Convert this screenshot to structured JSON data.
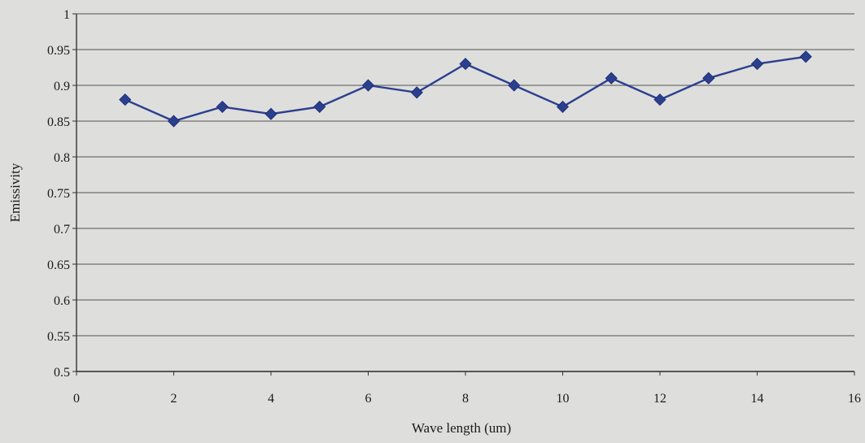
{
  "chart_data": {
    "type": "line",
    "title": "",
    "xlabel": "Wave length (um)",
    "ylabel": "Emissivity",
    "xlim": [
      0,
      16
    ],
    "ylim": [
      0.5,
      1
    ],
    "x_ticks": [
      0,
      2,
      4,
      6,
      8,
      10,
      12,
      14,
      16
    ],
    "x_tick_labels": [
      "0",
      "2",
      "4",
      "6",
      "8",
      "10",
      "12",
      "14",
      "16"
    ],
    "y_ticks": [
      0.5,
      0.55,
      0.6,
      0.65,
      0.7,
      0.75,
      0.8,
      0.85,
      0.9,
      0.95,
      1
    ],
    "y_tick_labels": [
      "0.5",
      "0.55",
      "0.6",
      "0.65",
      "0.7",
      "0.75",
      "0.8",
      "0.85",
      "0.9",
      "0.95",
      "1"
    ],
    "grid": "horizontal",
    "legend": "none",
    "marker": "diamond",
    "colors": {
      "series": "#2b3f8f",
      "grid": "#6e6e6e",
      "background": "#dededc"
    },
    "series": [
      {
        "x": [
          1,
          2,
          3,
          4,
          5,
          6,
          7,
          8,
          9,
          10,
          11,
          12,
          13,
          14,
          15
        ],
        "values": [
          0.88,
          0.85,
          0.87,
          0.86,
          0.87,
          0.9,
          0.89,
          0.93,
          0.9,
          0.87,
          0.91,
          0.88,
          0.91,
          0.93,
          0.94
        ]
      }
    ]
  }
}
